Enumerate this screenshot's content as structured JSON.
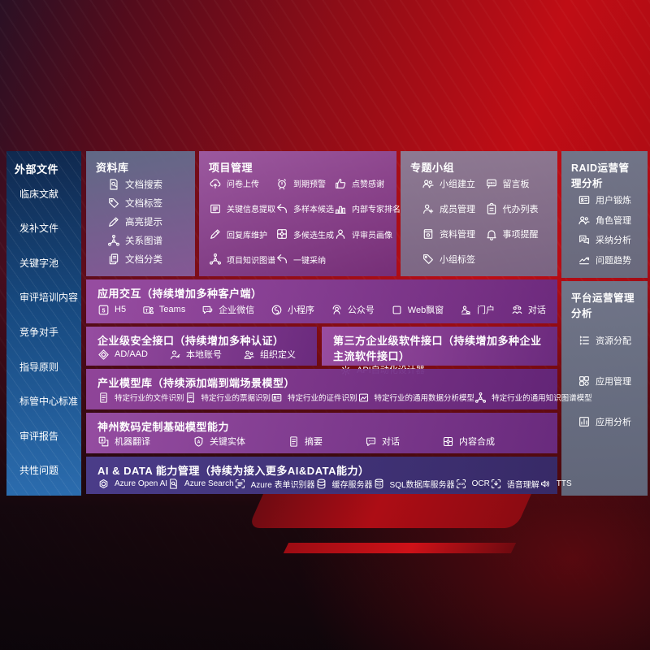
{
  "colors": {
    "background_red": "#c00d15",
    "background_dark": "#190a14",
    "sidebar_blue_top": "#10294f",
    "sidebar_blue_bottom": "#2b6cae",
    "band_purple": "#8a44a0",
    "band_ai_indigo": "#46398a",
    "panel_slate": "#6d7b8f",
    "text": "#ffffff"
  },
  "sidebar": {
    "title": "外部文件",
    "items": [
      "临床文献",
      "发补文件",
      "关键字池",
      "审评培训内容",
      "竞争对手",
      "指导原则",
      "标管中心标准",
      "审评报告",
      "共性问题"
    ]
  },
  "panels": {
    "library": {
      "title": "资料库",
      "items": [
        {
          "icon": "doc-search-icon",
          "label": "文档搜索"
        },
        {
          "icon": "tag-icon",
          "label": "文档标签"
        },
        {
          "icon": "pen-icon",
          "label": "高亮提示"
        },
        {
          "icon": "network-icon",
          "label": "关系图谱"
        },
        {
          "icon": "doc-copy-icon",
          "label": "文档分类"
        }
      ]
    },
    "project": {
      "title": "项目管理",
      "items": [
        {
          "icon": "cloud-upload-icon",
          "label": "问卷上传"
        },
        {
          "icon": "alarm-icon",
          "label": "到期预警"
        },
        {
          "icon": "thumb-up-icon",
          "label": "点赞感谢"
        },
        {
          "icon": "extract-icon",
          "label": "关键信息提取"
        },
        {
          "icon": "reply-arrow-icon",
          "label": "多样本候选"
        },
        {
          "icon": "rank-icon",
          "label": "内部专家排名"
        },
        {
          "icon": "pen-icon",
          "label": "回复库维护"
        },
        {
          "icon": "puzzle-icon",
          "label": "多候选生成"
        },
        {
          "icon": "person-icon",
          "label": "评审员画像"
        },
        {
          "icon": "network-icon",
          "label": "项目知识图谱"
        },
        {
          "icon": "reply-arrow-icon",
          "label": "一键采纳"
        }
      ]
    },
    "group": {
      "title": "专题小组",
      "items": [
        {
          "icon": "people-icon",
          "label": "小组建立"
        },
        {
          "icon": "bbs-icon",
          "label": "留言板"
        },
        {
          "icon": "person-add-icon",
          "label": "成员管理"
        },
        {
          "icon": "clipboard-icon",
          "label": "代办列表"
        },
        {
          "icon": "album-icon",
          "label": "资料管理"
        },
        {
          "icon": "bell-icon",
          "label": "事项提醒"
        },
        {
          "icon": "tag-icon",
          "label": "小组标签"
        }
      ]
    },
    "raid": {
      "title": "RAID运营管理分析",
      "items": [
        {
          "icon": "id-card-icon",
          "label": "用户锻炼"
        },
        {
          "icon": "people-icon",
          "label": "角色管理"
        },
        {
          "icon": "qa-chat-icon",
          "label": "采纳分析"
        },
        {
          "icon": "trend-icon",
          "label": "问题趋势"
        }
      ]
    },
    "platform": {
      "title": "平台运营管理分析",
      "items": [
        {
          "icon": "list-icon",
          "label": "资源分配"
        },
        {
          "icon": "grid-icon",
          "label": "应用管理"
        },
        {
          "icon": "chart-box-icon",
          "label": "应用分析"
        }
      ]
    }
  },
  "bands": {
    "interaction": {
      "title": "应用交互（持续增加多种客户端）",
      "items": [
        {
          "icon": "h5-icon",
          "label": "H5"
        },
        {
          "icon": "teams-icon",
          "label": "Teams"
        },
        {
          "icon": "wechat-work-icon",
          "label": "企业微信"
        },
        {
          "icon": "miniprogram-icon",
          "label": "小程序"
        },
        {
          "icon": "official-account-icon",
          "label": "公众号"
        },
        {
          "icon": "web-window-icon",
          "label": "Web飘窗"
        },
        {
          "icon": "portal-icon",
          "label": "门户"
        },
        {
          "icon": "dialog-icon",
          "label": "对话"
        }
      ]
    },
    "security": {
      "title": "企业级安全接口（持续增加多种认证）",
      "items": [
        {
          "icon": "diamond-icon",
          "label": "AD/AAD"
        },
        {
          "icon": "local-account-icon",
          "label": "本地账号"
        },
        {
          "icon": "org-icon",
          "label": "组织定义"
        }
      ]
    },
    "thirdparty": {
      "title": "第三方企业级软件接口（持续增加多种企业主流软件接口）",
      "items": [
        {
          "icon": "api-gear-icon",
          "label": "API自动化设计器"
        }
      ]
    },
    "models": {
      "title": "产业模型库（持续添加端到端场景模型）",
      "items": [
        {
          "icon": "doc-icon",
          "label": "特定行业的文件识别"
        },
        {
          "icon": "receipt-icon",
          "label": "特定行业的票据识别"
        },
        {
          "icon": "id-card-icon",
          "label": "特定行业的证件识别"
        },
        {
          "icon": "img-chart-icon",
          "label": "特定行业的通用数据分析模型"
        },
        {
          "icon": "network-icon",
          "label": "特定行业的通用知识图谱模型"
        }
      ]
    },
    "foundation": {
      "title": "神州数码定制基础模型能力",
      "items": [
        {
          "icon": "translate-icon",
          "label": "机器翻译"
        },
        {
          "icon": "shield-a-icon",
          "label": "关键实体"
        },
        {
          "icon": "doc-icon",
          "label": "摘要"
        },
        {
          "icon": "chat-dots-icon",
          "label": "对话"
        },
        {
          "icon": "puzzle-icon",
          "label": "内容合成"
        }
      ]
    },
    "aidata": {
      "title": "AI & DATA 能力管理（持续为接入更多AI&DATA能力）",
      "items": [
        {
          "icon": "openai-icon",
          "label": "Azure Open AI"
        },
        {
          "icon": "doc-search-icon",
          "label": "Azure Search"
        },
        {
          "icon": "form-recognizer-icon",
          "label": "Azure 表单识别器"
        },
        {
          "icon": "cache-server-icon",
          "label": "缓存服务器"
        },
        {
          "icon": "sql-db-icon",
          "label": "SQL数据库服务器"
        },
        {
          "icon": "ocr-icon",
          "label": "OCR"
        },
        {
          "icon": "speech-icon",
          "label": "语音理解"
        },
        {
          "icon": "tts-icon",
          "label": "TTS"
        }
      ]
    }
  }
}
